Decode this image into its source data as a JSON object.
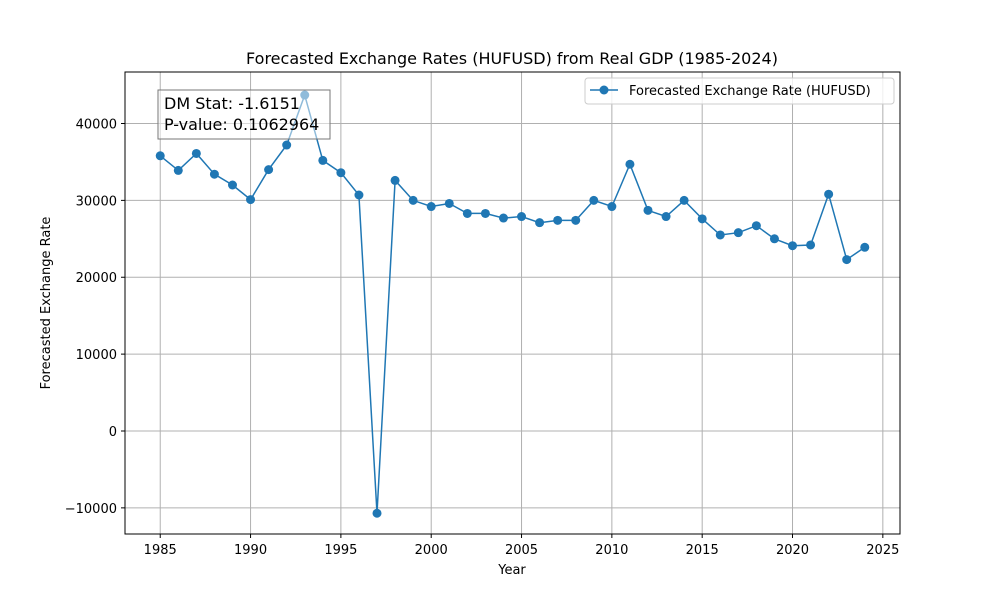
{
  "chart_data": {
    "type": "line",
    "title": "Forecasted Exchange Rates (HUFUSD) from Real GDP (1985-2024)",
    "xlabel": "Year",
    "ylabel": "Forecasted Exchange Rate",
    "xlim": [
      1983.05,
      1925.95
    ],
    "ylim": [
      -13400,
      46700
    ],
    "grid": true,
    "legend_position": "upper right",
    "x_ticks": [
      1985,
      1990,
      1995,
      2000,
      2005,
      2010,
      2015,
      2020,
      2025
    ],
    "x_tick_labels": [
      "1985",
      "1990",
      "1995",
      "2000",
      "2005",
      "2010",
      "2015",
      "2020",
      "2025"
    ],
    "y_ticks": [
      -10000,
      0,
      10000,
      20000,
      30000,
      40000
    ],
    "y_tick_labels": [
      "−10000",
      "0",
      "10000",
      "20000",
      "30000",
      "40000"
    ],
    "series": [
      {
        "name": "Forecasted Exchange Rate (HUFUSD)",
        "color": "#1f77b4",
        "marker": "circle",
        "x": [
          1985,
          1986,
          1987,
          1988,
          1989,
          1990,
          1991,
          1992,
          1993,
          1994,
          1995,
          1996,
          1997,
          1998,
          1999,
          2000,
          2001,
          2002,
          2003,
          2004,
          2005,
          2006,
          2007,
          2008,
          2009,
          2010,
          2011,
          2012,
          2013,
          2014,
          2015,
          2016,
          2017,
          2018,
          2019,
          2020,
          2021,
          2022,
          2023,
          2024
        ],
        "values": [
          35800,
          33900,
          36100,
          33400,
          32000,
          30100,
          34000,
          37200,
          43700,
          35200,
          33600,
          30700,
          -10700,
          32600,
          30000,
          29200,
          29600,
          28300,
          28300,
          27700,
          27900,
          27100,
          27400,
          27400,
          30000,
          29200,
          34700,
          28700,
          27900,
          30000,
          27600,
          25500,
          25800,
          26700,
          25000,
          24100,
          24200,
          30800,
          22300,
          23900
        ]
      }
    ],
    "annotations": [
      {
        "line1": "DM Stat: -1.6151",
        "line2": "P-value: 0.1062964"
      }
    ]
  }
}
